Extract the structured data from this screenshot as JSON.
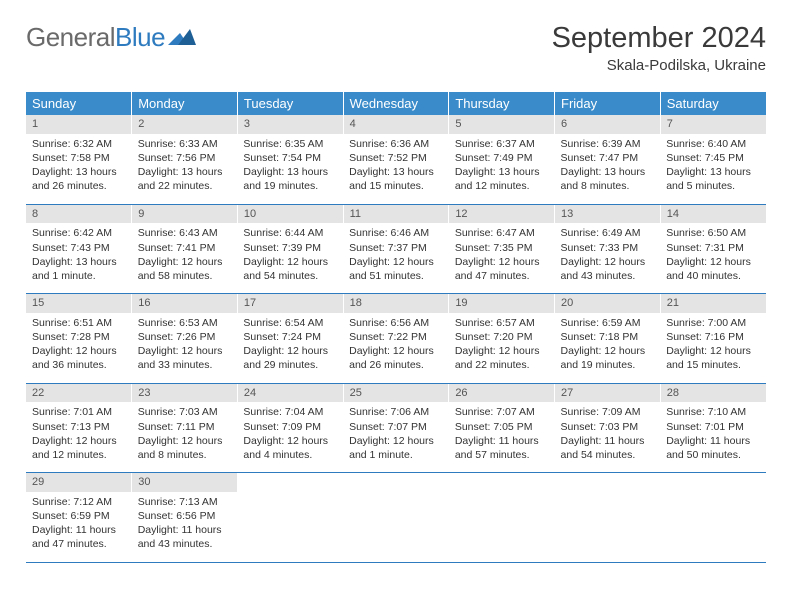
{
  "logo": {
    "textA": "General",
    "textB": "Blue"
  },
  "title": "September 2024",
  "location": "Skala-Podilska, Ukraine",
  "colors": {
    "header_bg": "#3a8bc9",
    "header_text": "#ffffff",
    "daynum_bg": "#e4e4e4",
    "rule": "#2f7bbf",
    "body_text": "#333333",
    "logo_gray": "#6a6a6a",
    "logo_blue": "#2f7bbf"
  },
  "weekdays": [
    "Sunday",
    "Monday",
    "Tuesday",
    "Wednesday",
    "Thursday",
    "Friday",
    "Saturday"
  ],
  "weeks": [
    [
      {
        "n": "1",
        "sr": "6:32 AM",
        "ss": "7:58 PM",
        "dl": "13 hours and 26 minutes."
      },
      {
        "n": "2",
        "sr": "6:33 AM",
        "ss": "7:56 PM",
        "dl": "13 hours and 22 minutes."
      },
      {
        "n": "3",
        "sr": "6:35 AM",
        "ss": "7:54 PM",
        "dl": "13 hours and 19 minutes."
      },
      {
        "n": "4",
        "sr": "6:36 AM",
        "ss": "7:52 PM",
        "dl": "13 hours and 15 minutes."
      },
      {
        "n": "5",
        "sr": "6:37 AM",
        "ss": "7:49 PM",
        "dl": "13 hours and 12 minutes."
      },
      {
        "n": "6",
        "sr": "6:39 AM",
        "ss": "7:47 PM",
        "dl": "13 hours and 8 minutes."
      },
      {
        "n": "7",
        "sr": "6:40 AM",
        "ss": "7:45 PM",
        "dl": "13 hours and 5 minutes."
      }
    ],
    [
      {
        "n": "8",
        "sr": "6:42 AM",
        "ss": "7:43 PM",
        "dl": "13 hours and 1 minute."
      },
      {
        "n": "9",
        "sr": "6:43 AM",
        "ss": "7:41 PM",
        "dl": "12 hours and 58 minutes."
      },
      {
        "n": "10",
        "sr": "6:44 AM",
        "ss": "7:39 PM",
        "dl": "12 hours and 54 minutes."
      },
      {
        "n": "11",
        "sr": "6:46 AM",
        "ss": "7:37 PM",
        "dl": "12 hours and 51 minutes."
      },
      {
        "n": "12",
        "sr": "6:47 AM",
        "ss": "7:35 PM",
        "dl": "12 hours and 47 minutes."
      },
      {
        "n": "13",
        "sr": "6:49 AM",
        "ss": "7:33 PM",
        "dl": "12 hours and 43 minutes."
      },
      {
        "n": "14",
        "sr": "6:50 AM",
        "ss": "7:31 PM",
        "dl": "12 hours and 40 minutes."
      }
    ],
    [
      {
        "n": "15",
        "sr": "6:51 AM",
        "ss": "7:28 PM",
        "dl": "12 hours and 36 minutes."
      },
      {
        "n": "16",
        "sr": "6:53 AM",
        "ss": "7:26 PM",
        "dl": "12 hours and 33 minutes."
      },
      {
        "n": "17",
        "sr": "6:54 AM",
        "ss": "7:24 PM",
        "dl": "12 hours and 29 minutes."
      },
      {
        "n": "18",
        "sr": "6:56 AM",
        "ss": "7:22 PM",
        "dl": "12 hours and 26 minutes."
      },
      {
        "n": "19",
        "sr": "6:57 AM",
        "ss": "7:20 PM",
        "dl": "12 hours and 22 minutes."
      },
      {
        "n": "20",
        "sr": "6:59 AM",
        "ss": "7:18 PM",
        "dl": "12 hours and 19 minutes."
      },
      {
        "n": "21",
        "sr": "7:00 AM",
        "ss": "7:16 PM",
        "dl": "12 hours and 15 minutes."
      }
    ],
    [
      {
        "n": "22",
        "sr": "7:01 AM",
        "ss": "7:13 PM",
        "dl": "12 hours and 12 minutes."
      },
      {
        "n": "23",
        "sr": "7:03 AM",
        "ss": "7:11 PM",
        "dl": "12 hours and 8 minutes."
      },
      {
        "n": "24",
        "sr": "7:04 AM",
        "ss": "7:09 PM",
        "dl": "12 hours and 4 minutes."
      },
      {
        "n": "25",
        "sr": "7:06 AM",
        "ss": "7:07 PM",
        "dl": "12 hours and 1 minute."
      },
      {
        "n": "26",
        "sr": "7:07 AM",
        "ss": "7:05 PM",
        "dl": "11 hours and 57 minutes."
      },
      {
        "n": "27",
        "sr": "7:09 AM",
        "ss": "7:03 PM",
        "dl": "11 hours and 54 minutes."
      },
      {
        "n": "28",
        "sr": "7:10 AM",
        "ss": "7:01 PM",
        "dl": "11 hours and 50 minutes."
      }
    ],
    [
      {
        "n": "29",
        "sr": "7:12 AM",
        "ss": "6:59 PM",
        "dl": "11 hours and 47 minutes."
      },
      {
        "n": "30",
        "sr": "7:13 AM",
        "ss": "6:56 PM",
        "dl": "11 hours and 43 minutes."
      },
      null,
      null,
      null,
      null,
      null
    ]
  ],
  "labels": {
    "sunrise": "Sunrise:",
    "sunset": "Sunset:",
    "daylight": "Daylight:"
  }
}
